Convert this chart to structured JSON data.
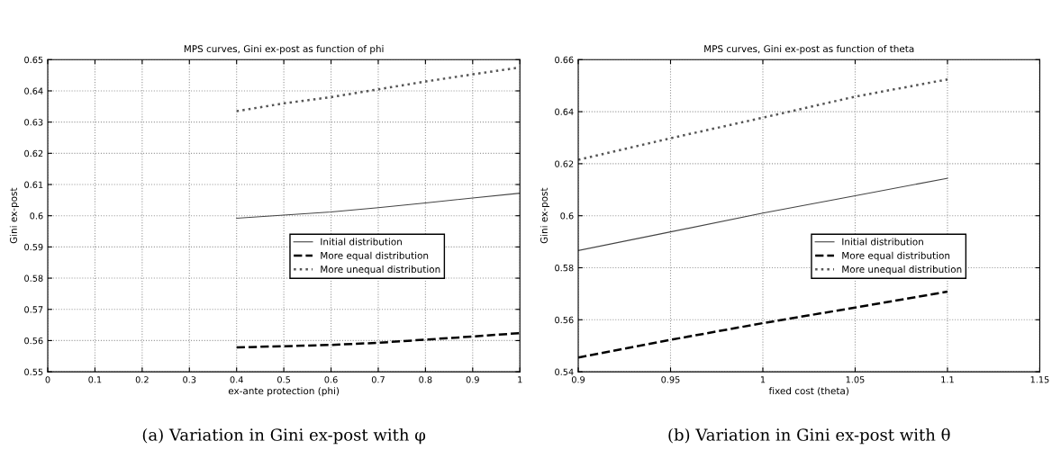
{
  "chart_data": [
    {
      "type": "line",
      "title": "MPS curves, Gini ex-post as function of phi",
      "xlabel": "ex-ante protection (phi)",
      "ylabel": "Gini ex-post",
      "x": [
        0.4,
        0.5,
        0.6,
        0.7,
        0.8,
        0.9,
        1.0
      ],
      "series": [
        {
          "name": "Initial distribution",
          "color": "#444444",
          "line_style": "solid",
          "values": [
            0.5992,
            0.6002,
            0.6012,
            0.6026,
            0.6041,
            0.6057,
            0.6072
          ]
        },
        {
          "name": "More equal distribution",
          "color": "#000000",
          "line_style": "dashed",
          "values": [
            0.5578,
            0.5582,
            0.5586,
            0.5593,
            0.5603,
            0.5613,
            0.5624
          ]
        },
        {
          "name": "More unequal distribution",
          "color": "#555555",
          "line_style": "dotted",
          "values": [
            0.6335,
            0.636,
            0.638,
            0.6405,
            0.643,
            0.6453,
            0.6475
          ]
        }
      ],
      "xlim": [
        0,
        1
      ],
      "xticks": [
        0,
        0.1,
        0.2,
        0.3,
        0.4,
        0.5,
        0.6,
        0.7,
        0.8,
        0.9,
        1
      ],
      "ylim": [
        0.55,
        0.65
      ],
      "yticks": [
        0.55,
        0.56,
        0.57,
        0.58,
        0.59,
        0.6,
        0.61,
        0.62,
        0.63,
        0.64,
        0.65
      ],
      "grid": true,
      "legend": "right",
      "marker": "none",
      "annotations": [
        "(a) Variation in Gini ex-post with φ"
      ]
    },
    {
      "type": "line",
      "title": "MPS curves, Gini ex-post as function of theta",
      "xlabel": "fixed cost (theta)",
      "ylabel": "Gini ex-post",
      "x": [
        0.9,
        0.95,
        1.0,
        1.05,
        1.1
      ],
      "series": [
        {
          "name": "Initial distribution",
          "color": "#444444",
          "line_style": "solid",
          "values": [
            0.5866,
            0.5938,
            0.601,
            0.6077,
            0.6144
          ]
        },
        {
          "name": "More equal distribution",
          "color": "#000000",
          "line_style": "dashed",
          "values": [
            0.5455,
            0.5523,
            0.5587,
            0.5647,
            0.5708
          ]
        },
        {
          "name": "More unequal distribution",
          "color": "#555555",
          "line_style": "dotted",
          "values": [
            0.6215,
            0.6298,
            0.6377,
            0.6458,
            0.6524
          ]
        }
      ],
      "xlim": [
        0.9,
        1.15
      ],
      "xticks": [
        0.9,
        0.95,
        1,
        1.05,
        1.1,
        1.15
      ],
      "ylim": [
        0.54,
        0.66
      ],
      "yticks": [
        0.54,
        0.56,
        0.58,
        0.6,
        0.62,
        0.64,
        0.66
      ],
      "grid": true,
      "legend": "right",
      "marker": "none",
      "annotations": [
        "(b) Variation in Gini ex-post with θ"
      ]
    }
  ]
}
